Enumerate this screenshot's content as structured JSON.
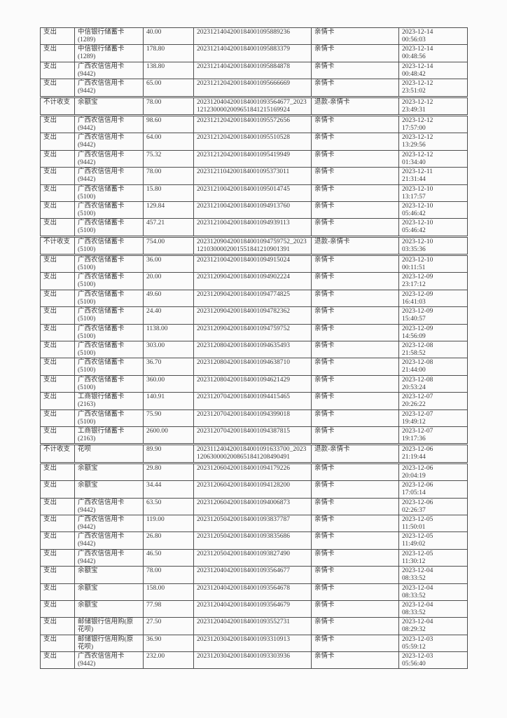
{
  "document": {
    "kind": "transaction-statement-scan",
    "colors": {
      "page_background": "#fbfbfb",
      "table_border": "#4e4e4e",
      "text": "#3a3a3a"
    }
  },
  "table": {
    "columns": [
      "type",
      "account",
      "amount",
      "transaction_id",
      "tag",
      "datetime"
    ],
    "rows": [
      {
        "type": "支出",
        "account": [
          "中信银行储蓄卡",
          "(1289)"
        ],
        "amount": "40.00",
        "txn": "2023121404200184001095889236",
        "tag": "亲情卡",
        "date": "2023-12-14",
        "time": "00:56:03",
        "special": false
      },
      {
        "type": "支出",
        "account": [
          "中信银行储蓄卡",
          "(1289)"
        ],
        "amount": "178.80",
        "txn": "2023121404200184001095883379",
        "tag": "亲情卡",
        "date": "2023-12-14",
        "time": "00:48:56",
        "special": false
      },
      {
        "type": "支出",
        "account": [
          "广西农信信用卡",
          "(9442)"
        ],
        "amount": "138.80",
        "txn": "2023121404200184001095884878",
        "tag": "亲情卡",
        "date": "2023-12-14",
        "time": "00:48:42",
        "special": false
      },
      {
        "type": "支出",
        "account": [
          "广西农信信用卡",
          "(9442)"
        ],
        "amount": "65.00",
        "txn": "2023121204200184001095666669",
        "tag": "亲情卡",
        "date": "2023-12-12",
        "time": "23:51:02",
        "special": false
      },
      {
        "type": "不计收支",
        "account": [
          "余额宝"
        ],
        "amount": "78.00",
        "txn": "2023120404200184001093564677_20231212300002009651841215169924",
        "tag": "退款-亲情卡",
        "date": "2023-12-12",
        "time": "23:49:31",
        "special": true
      },
      {
        "type": "支出",
        "account": [
          "广西农信信用卡",
          "(9442)"
        ],
        "amount": "98.60",
        "txn": "2023121204200184001095572656",
        "tag": "亲情卡",
        "date": "2023-12-12",
        "time": "17:57:00",
        "special": false
      },
      {
        "type": "支出",
        "account": [
          "广西农信信用卡",
          "(9442)"
        ],
        "amount": "64.00",
        "txn": "2023121204200184001095510528",
        "tag": "亲情卡",
        "date": "2023-12-12",
        "time": "13:29:56",
        "special": false
      },
      {
        "type": "支出",
        "account": [
          "广西农信信用卡",
          "(9442)"
        ],
        "amount": "75.32",
        "txn": "2023121204200184001095419949",
        "tag": "亲情卡",
        "date": "2023-12-12",
        "time": "01:34:40",
        "special": false
      },
      {
        "type": "支出",
        "account": [
          "广西农信信用卡",
          "(9442)"
        ],
        "amount": "78.00",
        "txn": "2023121104200184001095373011",
        "tag": "亲情卡",
        "date": "2023-12-11",
        "time": "21:31:44",
        "special": false
      },
      {
        "type": "支出",
        "account": [
          "广西农信储蓄卡",
          "(5100)"
        ],
        "amount": "15.80",
        "txn": "2023121004200184001095014745",
        "tag": "亲情卡",
        "date": "2023-12-10",
        "time": "13:17:57",
        "special": false
      },
      {
        "type": "支出",
        "account": [
          "广西农信储蓄卡",
          "(5100)"
        ],
        "amount": "129.84",
        "txn": "2023121004200184001094913760",
        "tag": "亲情卡",
        "date": "2023-12-10",
        "time": "05:46:42",
        "special": false
      },
      {
        "type": "支出",
        "account": [
          "广西农信储蓄卡",
          "(5100)"
        ],
        "amount": "457.21",
        "txn": "2023121004200184001094939113",
        "tag": "亲情卡",
        "date": "2023-12-10",
        "time": "05:46:42",
        "special": false
      },
      {
        "type": "不计收支",
        "account": [
          "广西农信储蓄卡",
          "(5100)"
        ],
        "amount": "754.00",
        "txn": "2023120904200184001094759752_20231210300002001551841210901391",
        "tag": "退款-亲情卡",
        "date": "2023-12-10",
        "time": "03:35:36",
        "special": true
      },
      {
        "type": "支出",
        "account": [
          "广西农信储蓄卡",
          "(5100)"
        ],
        "amount": "36.00",
        "txn": "2023121004200184001094915024",
        "tag": "亲情卡",
        "date": "2023-12-10",
        "time": "00:11:51",
        "special": false
      },
      {
        "type": "支出",
        "account": [
          "广西农信储蓄卡",
          "(5100)"
        ],
        "amount": "20.00",
        "txn": "2023120904200184001094902224",
        "tag": "亲情卡",
        "date": "2023-12-09",
        "time": "23:17:12",
        "special": false
      },
      {
        "type": "支出",
        "account": [
          "广西农信储蓄卡",
          "(5100)"
        ],
        "amount": "49.60",
        "txn": "2023120904200184001094774825",
        "tag": "亲情卡",
        "date": "2023-12-09",
        "time": "16:41:03",
        "special": false
      },
      {
        "type": "支出",
        "account": [
          "广西农信储蓄卡",
          "(5100)"
        ],
        "amount": "24.40",
        "txn": "2023120904200184001094782362",
        "tag": "亲情卡",
        "date": "2023-12-09",
        "time": "15:40:57",
        "special": false
      },
      {
        "type": "支出",
        "account": [
          "广西农信储蓄卡",
          "(5100)"
        ],
        "amount": "1138.00",
        "txn": "2023120904200184001094759752",
        "tag": "亲情卡",
        "date": "2023-12-09",
        "time": "14:56:09",
        "special": false
      },
      {
        "type": "支出",
        "account": [
          "广西农信储蓄卡",
          "(5100)"
        ],
        "amount": "303.00",
        "txn": "2023120804200184001094635493",
        "tag": "亲情卡",
        "date": "2023-12-08",
        "time": "21:58:52",
        "special": false
      },
      {
        "type": "支出",
        "account": [
          "广西农信储蓄卡",
          "(5100)"
        ],
        "amount": "36.70",
        "txn": "2023120804200184001094638710",
        "tag": "亲情卡",
        "date": "2023-12-08",
        "time": "21:44:00",
        "special": false
      },
      {
        "type": "支出",
        "account": [
          "广西农信储蓄卡",
          "(5100)"
        ],
        "amount": "360.00",
        "txn": "2023120804200184001094621429",
        "tag": "亲情卡",
        "date": "2023-12-08",
        "time": "20:53:24",
        "special": false
      },
      {
        "type": "支出",
        "account": [
          "工商银行储蓄卡",
          "(2163)"
        ],
        "amount": "140.91",
        "txn": "2023120704200184001094415465",
        "tag": "亲情卡",
        "date": "2023-12-07",
        "time": "20:26:22",
        "special": false
      },
      {
        "type": "支出",
        "account": [
          "广西农信储蓄卡",
          "(5100)"
        ],
        "amount": "75.90",
        "txn": "2023120704200184001094399018",
        "tag": "亲情卡",
        "date": "2023-12-07",
        "time": "19:49:12",
        "special": false
      },
      {
        "type": "支出",
        "account": [
          "工商银行储蓄卡",
          "(2163)"
        ],
        "amount": "2600.00",
        "txn": "2023120704200184001094387815",
        "tag": "亲情卡",
        "date": "2023-12-07",
        "time": "19:17:36",
        "special": false
      },
      {
        "type": "不计收支",
        "account": [
          "花呗"
        ],
        "amount": "89.90",
        "txn": "2023112404200184001091633700_20231206300002008651841208490491",
        "tag": "退款-亲情卡",
        "date": "2023-12-06",
        "time": "21:19:44",
        "special": true
      },
      {
        "type": "支出",
        "account": [
          "余额宝"
        ],
        "amount": "29.80",
        "txn": "2023120604200184001094179226",
        "tag": "亲情卡",
        "date": "2023-12-06",
        "time": "20:04:19",
        "special": false
      },
      {
        "type": "支出",
        "account": [
          "余额宝"
        ],
        "amount": "34.44",
        "txn": "2023120604200184001094128200",
        "tag": "亲情卡",
        "date": "2023-12-06",
        "time": "17:05:14",
        "special": false
      },
      {
        "type": "支出",
        "account": [
          "广西农信信用卡",
          "(9442)"
        ],
        "amount": "63.50",
        "txn": "2023120604200184001094006873",
        "tag": "亲情卡",
        "date": "2023-12-06",
        "time": "02:26:37",
        "special": false
      },
      {
        "type": "支出",
        "account": [
          "广西农信信用卡",
          "(9442)"
        ],
        "amount": "119.00",
        "txn": "2023120504200184001093837787",
        "tag": "亲情卡",
        "date": "2023-12-05",
        "time": "11:50:01",
        "special": false
      },
      {
        "type": "支出",
        "account": [
          "广西农信信用卡",
          "(9442)"
        ],
        "amount": "26.80",
        "txn": "2023120504200184001093835686",
        "tag": "亲情卡",
        "date": "2023-12-05",
        "time": "11:49:02",
        "special": false
      },
      {
        "type": "支出",
        "account": [
          "广西农信信用卡",
          "(9442)"
        ],
        "amount": "46.50",
        "txn": "2023120504200184001093827490",
        "tag": "亲情卡",
        "date": "2023-12-05",
        "time": "11:30:12",
        "special": false
      },
      {
        "type": "支出",
        "account": [
          "余额宝"
        ],
        "amount": "78.00",
        "txn": "2023120404200184001093564677",
        "tag": "亲情卡",
        "date": "2023-12-04",
        "time": "08:33:52",
        "special": false
      },
      {
        "type": "支出",
        "account": [
          "余额宝"
        ],
        "amount": "158.00",
        "txn": "2023120404200184001093564678",
        "tag": "亲情卡",
        "date": "2023-12-04",
        "time": "08:33:52",
        "special": false
      },
      {
        "type": "支出",
        "account": [
          "余额宝"
        ],
        "amount": "77.98",
        "txn": "2023120404200184001093564679",
        "tag": "亲情卡",
        "date": "2023-12-04",
        "time": "08:33:52",
        "special": false
      },
      {
        "type": "支出",
        "account": [
          "邮储银行信用购(原",
          "花呗)"
        ],
        "amount": "27.50",
        "txn": "2023120404200184001093552731",
        "tag": "亲情卡",
        "date": "2023-12-04",
        "time": "08:29:32",
        "special": false
      },
      {
        "type": "支出",
        "account": [
          "邮储银行信用购(原",
          "花呗)"
        ],
        "amount": "36.90",
        "txn": "2023120304200184001093310913",
        "tag": "亲情卡",
        "date": "2023-12-03",
        "time": "05:59:12",
        "special": false
      },
      {
        "type": "支出",
        "account": [
          "广西农信信用卡",
          "(9442)"
        ],
        "amount": "232.00",
        "txn": "2023120304200184001093303936",
        "tag": "亲情卡",
        "date": "2023-12-03",
        "time": "05:56:40",
        "special": false
      }
    ]
  }
}
